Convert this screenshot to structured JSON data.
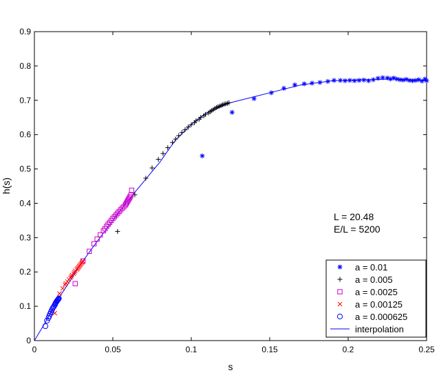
{
  "chart_data": {
    "type": "scatter",
    "xlabel": "s",
    "ylabel": "h(s)",
    "xlim": [
      0,
      0.25
    ],
    "ylim": [
      0,
      0.9
    ],
    "xticks": [
      "0",
      "0.05",
      "0.1",
      "0.15",
      "0.2",
      "0.25"
    ],
    "yticks": [
      "0",
      "0.1",
      "0.2",
      "0.3",
      "0.4",
      "0.5",
      "0.6",
      "0.7",
      "0.8",
      "0.9"
    ],
    "grid": false,
    "legend_position": "bottom-right",
    "annotations": [
      "L = 20.48",
      "E/L = 5200"
    ],
    "series": [
      {
        "name": "a = 0.01",
        "marker": "asterisk",
        "color": "#0000ff",
        "x": [
          0.107,
          0.126,
          0.14,
          0.151,
          0.159,
          0.166,
          0.172,
          0.177,
          0.182,
          0.187,
          0.191,
          0.195,
          0.198,
          0.201,
          0.204,
          0.207,
          0.21,
          0.213,
          0.216,
          0.219,
          0.222,
          0.225,
          0.227,
          0.229,
          0.231,
          0.233,
          0.235,
          0.237,
          0.239,
          0.241,
          0.243,
          0.245,
          0.247,
          0.249,
          0.25
        ],
        "y": [
          0.538,
          0.665,
          0.705,
          0.722,
          0.735,
          0.745,
          0.748,
          0.75,
          0.752,
          0.755,
          0.758,
          0.758,
          0.757,
          0.758,
          0.757,
          0.758,
          0.759,
          0.757,
          0.76,
          0.764,
          0.766,
          0.765,
          0.762,
          0.765,
          0.762,
          0.76,
          0.759,
          0.761,
          0.758,
          0.757,
          0.758,
          0.76,
          0.756,
          0.762,
          0.757
        ]
      },
      {
        "name": "a = 0.005",
        "marker": "plus",
        "color": "#000000",
        "x": [
          0.053,
          0.064,
          0.071,
          0.075,
          0.079,
          0.082,
          0.085,
          0.088,
          0.09,
          0.092,
          0.094,
          0.096,
          0.098,
          0.1,
          0.102,
          0.103,
          0.105,
          0.106,
          0.108,
          0.109,
          0.111,
          0.112,
          0.113,
          0.114,
          0.115,
          0.116,
          0.117,
          0.118,
          0.119,
          0.12,
          0.121,
          0.122,
          0.123,
          0.124
        ],
        "y": [
          0.318,
          0.425,
          0.473,
          0.503,
          0.528,
          0.545,
          0.562,
          0.577,
          0.587,
          0.597,
          0.606,
          0.614,
          0.622,
          0.629,
          0.635,
          0.64,
          0.645,
          0.65,
          0.655,
          0.659,
          0.663,
          0.667,
          0.67,
          0.673,
          0.676,
          0.679,
          0.681,
          0.683,
          0.685,
          0.687,
          0.689,
          0.69,
          0.691,
          0.693
        ]
      },
      {
        "name": "a = 0.0025",
        "marker": "square",
        "color": "#cc00cc",
        "x": [
          0.026,
          0.031,
          0.035,
          0.038,
          0.04,
          0.042,
          0.044,
          0.045,
          0.046,
          0.047,
          0.048,
          0.049,
          0.05,
          0.051,
          0.052,
          0.053,
          0.054,
          0.055,
          0.056,
          0.057,
          0.058,
          0.0585,
          0.059,
          0.0595,
          0.06,
          0.0605,
          0.061,
          0.0615,
          0.062
        ],
        "y": [
          0.166,
          0.232,
          0.26,
          0.282,
          0.296,
          0.308,
          0.32,
          0.326,
          0.333,
          0.339,
          0.344,
          0.35,
          0.356,
          0.361,
          0.366,
          0.371,
          0.376,
          0.381,
          0.386,
          0.39,
          0.395,
          0.399,
          0.403,
          0.407,
          0.411,
          0.415,
          0.419,
          0.424,
          0.438
        ]
      },
      {
        "name": "a = 0.00125",
        "marker": "x",
        "color": "#ff0000",
        "x": [
          0.013,
          0.016,
          0.018,
          0.0195,
          0.02,
          0.021,
          0.022,
          0.023,
          0.0235,
          0.024,
          0.025,
          0.0255,
          0.026,
          0.027,
          0.0275,
          0.028,
          0.0285,
          0.029,
          0.0295,
          0.03,
          0.0305,
          0.031
        ],
        "y": [
          0.08,
          0.137,
          0.152,
          0.163,
          0.167,
          0.172,
          0.178,
          0.183,
          0.187,
          0.191,
          0.195,
          0.199,
          0.203,
          0.207,
          0.21,
          0.213,
          0.216,
          0.219,
          0.222,
          0.225,
          0.228,
          0.231
        ]
      },
      {
        "name": "a = 0.000625",
        "marker": "circle",
        "color": "#0000ff",
        "x": [
          0.007,
          0.008,
          0.009,
          0.0095,
          0.01,
          0.0105,
          0.011,
          0.0115,
          0.012,
          0.0125,
          0.013,
          0.0133,
          0.0136,
          0.014,
          0.0143,
          0.0146,
          0.015,
          0.0153,
          0.0156
        ],
        "y": [
          0.042,
          0.058,
          0.066,
          0.072,
          0.078,
          0.083,
          0.088,
          0.093,
          0.097,
          0.1,
          0.104,
          0.107,
          0.11,
          0.113,
          0.115,
          0.117,
          0.119,
          0.121,
          0.123
        ]
      },
      {
        "name": "interpolation",
        "marker": "line",
        "color": "#0000ff",
        "x": [
          0,
          0.005,
          0.01,
          0.015,
          0.02,
          0.03,
          0.04,
          0.05,
          0.06,
          0.07,
          0.08,
          0.09,
          0.1,
          0.11,
          0.125,
          0.15,
          0.17,
          0.19,
          0.21,
          0.23,
          0.25
        ],
        "y": [
          0,
          0.038,
          0.078,
          0.12,
          0.155,
          0.226,
          0.289,
          0.35,
          0.41,
          0.465,
          0.52,
          0.585,
          0.63,
          0.664,
          0.693,
          0.722,
          0.745,
          0.757,
          0.76,
          0.762,
          0.758
        ]
      }
    ]
  }
}
